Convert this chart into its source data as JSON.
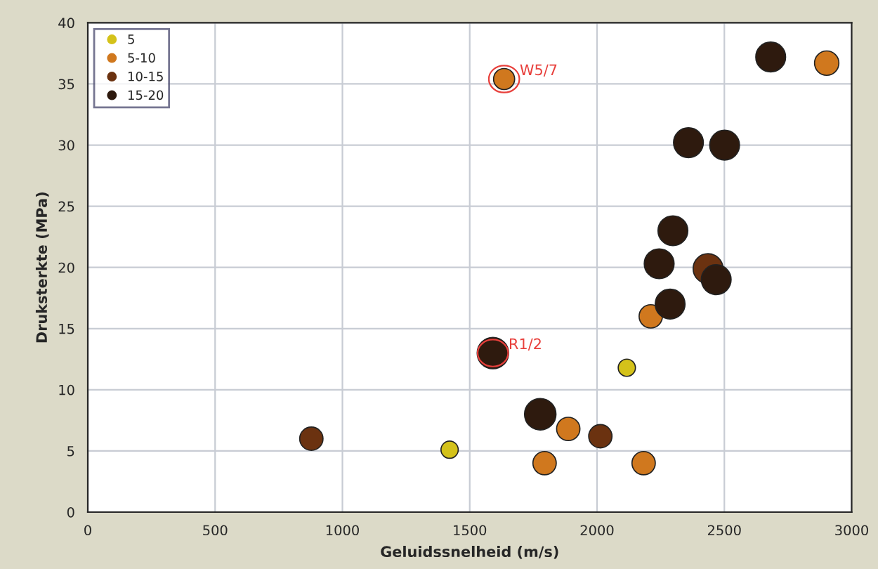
{
  "chart_data": {
    "type": "bubble",
    "xlabel": "Geluidssnelheid (m/s)",
    "ylabel": "Druksterkte (MPa)",
    "xlim": [
      0,
      3000
    ],
    "xticks": [
      0,
      500,
      1000,
      1500,
      2000,
      2500,
      3000
    ],
    "ylim": [
      0,
      40
    ],
    "yticks": [
      0,
      5,
      10,
      15,
      20,
      25,
      30,
      35,
      40
    ],
    "grid": true,
    "legend": "top left",
    "marker": "circle",
    "series": [
      {
        "name": "5",
        "color": "#d4c21a",
        "x": [
          1421,
          2117
        ],
        "values": [
          5.1,
          11.8
        ],
        "sizes": [
          0.3,
          0.3
        ]
      },
      {
        "name": "5-10",
        "color": "#d0781e",
        "x": [
          1635,
          1887,
          1794,
          2183,
          2211,
          2902
        ],
        "values": [
          35.4,
          6.8,
          4.0,
          4.0,
          16.0,
          36.7
        ],
        "sizes": [
          0.45,
          0.55,
          0.55,
          0.55,
          0.55,
          0.6
        ]
      },
      {
        "name": "10-15",
        "color": "#6b3210",
        "x": [
          878,
          2013,
          2436
        ],
        "values": [
          6.0,
          6.2,
          19.9
        ],
        "sizes": [
          0.55,
          0.55,
          0.9
        ]
      },
      {
        "name": "15-20",
        "color": "#2e1a0e",
        "x": [
          1591,
          1777,
          2244,
          2287,
          2298,
          2359,
          2468,
          2501,
          2682
        ],
        "values": [
          13.0,
          8.0,
          20.3,
          17.0,
          23.0,
          30.2,
          19.0,
          30.0,
          37.2
        ],
        "sizes": [
          1,
          1,
          0.9,
          0.9,
          0.9,
          0.9,
          0.9,
          0.9,
          0.9
        ]
      }
    ],
    "annotations": [
      {
        "text": "W5/7",
        "x": 1635,
        "y": 35.4
      },
      {
        "text": "R1/2",
        "x": 1591,
        "y": 13.0
      }
    ]
  }
}
